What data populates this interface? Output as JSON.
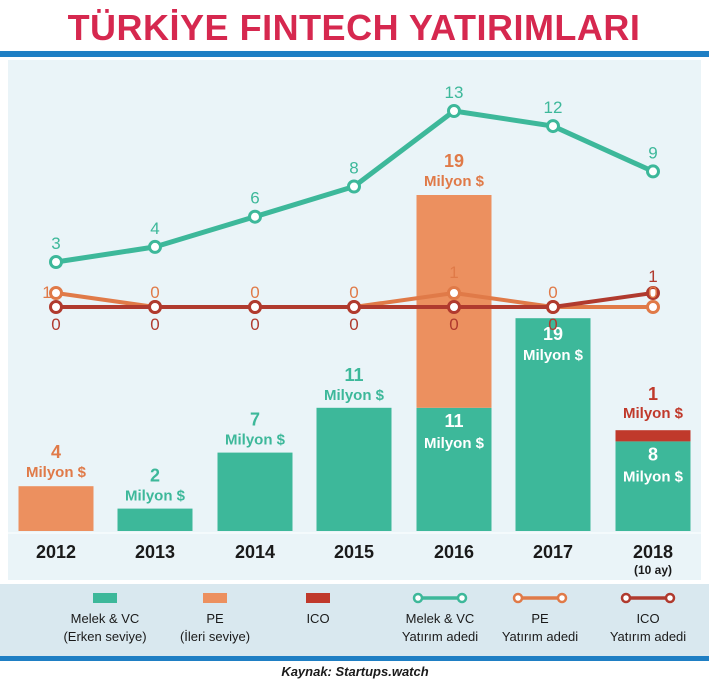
{
  "title": "TÜRKİYE FINTECH YATIRIMLARI",
  "source": "Kaynak: Startups.watch",
  "colors": {
    "melek_vc": "#3db89a",
    "pe": "#ec905f",
    "ico": "#c0392b",
    "melek_vc_line": "#3db89a",
    "pe_line": "#e07a48",
    "ico_line": "#b03a2e",
    "accent_rule": "#1f7fc4",
    "plot_bg": "#eaf4f8",
    "title": "#d6284f"
  },
  "chart_data": {
    "type": "bar",
    "categories": [
      "2012",
      "2013",
      "2014",
      "2015",
      "2016",
      "2017",
      "2018"
    ],
    "category_notes": [
      "",
      "",
      "",
      "",
      "",
      "",
      "(10 ay)"
    ],
    "unit_label": "Milyon $",
    "bar_series": [
      {
        "key": "melek_vc",
        "values": [
          0,
          2,
          7,
          11,
          11,
          19,
          8
        ]
      },
      {
        "key": "pe",
        "values": [
          4,
          0,
          0,
          0,
          19,
          0,
          0
        ]
      },
      {
        "key": "ico",
        "values": [
          0,
          0,
          0,
          0,
          0,
          0,
          1
        ]
      }
    ],
    "bar_labels": [
      [
        {
          "value": "4",
          "series": "pe"
        }
      ],
      [
        {
          "value": "2",
          "series": "melek_vc"
        }
      ],
      [
        {
          "value": "7",
          "series": "melek_vc"
        }
      ],
      [
        {
          "value": "11",
          "series": "melek_vc"
        }
      ],
      [
        {
          "value": "19",
          "series": "pe"
        },
        {
          "value": "11",
          "series": "melek_vc"
        }
      ],
      [
        {
          "value": "19",
          "series": "melek_vc"
        }
      ],
      [
        {
          "value": "1",
          "series": "ico"
        },
        {
          "value": "8",
          "series": "melek_vc"
        }
      ]
    ],
    "line_series": [
      {
        "key": "melek_vc_line",
        "values": [
          3,
          4,
          6,
          8,
          13,
          12,
          9
        ]
      },
      {
        "key": "pe_line",
        "values": [
          1,
          0,
          0,
          0,
          1,
          0,
          0
        ]
      },
      {
        "key": "ico_line",
        "values": [
          0,
          0,
          0,
          0,
          0,
          0,
          1
        ]
      }
    ],
    "legend": [
      {
        "key": "melek_vc",
        "kind": "bar",
        "line1": "Melek & VC",
        "line2": "(Erken seviye)"
      },
      {
        "key": "pe",
        "kind": "bar",
        "line1": "PE",
        "line2": "(İleri seviye)"
      },
      {
        "key": "ico",
        "kind": "bar",
        "line1": "ICO",
        "line2": ""
      },
      {
        "key": "melek_vc_line",
        "kind": "line",
        "line1": "Melek & VC",
        "line2": "Yatırım adedi"
      },
      {
        "key": "pe_line",
        "kind": "line",
        "line1": "PE",
        "line2": "Yatırım adedi"
      },
      {
        "key": "ico_line",
        "kind": "line",
        "line1": "ICO",
        "line2": "Yatırım adedi"
      }
    ],
    "legend_position": "bottom"
  }
}
